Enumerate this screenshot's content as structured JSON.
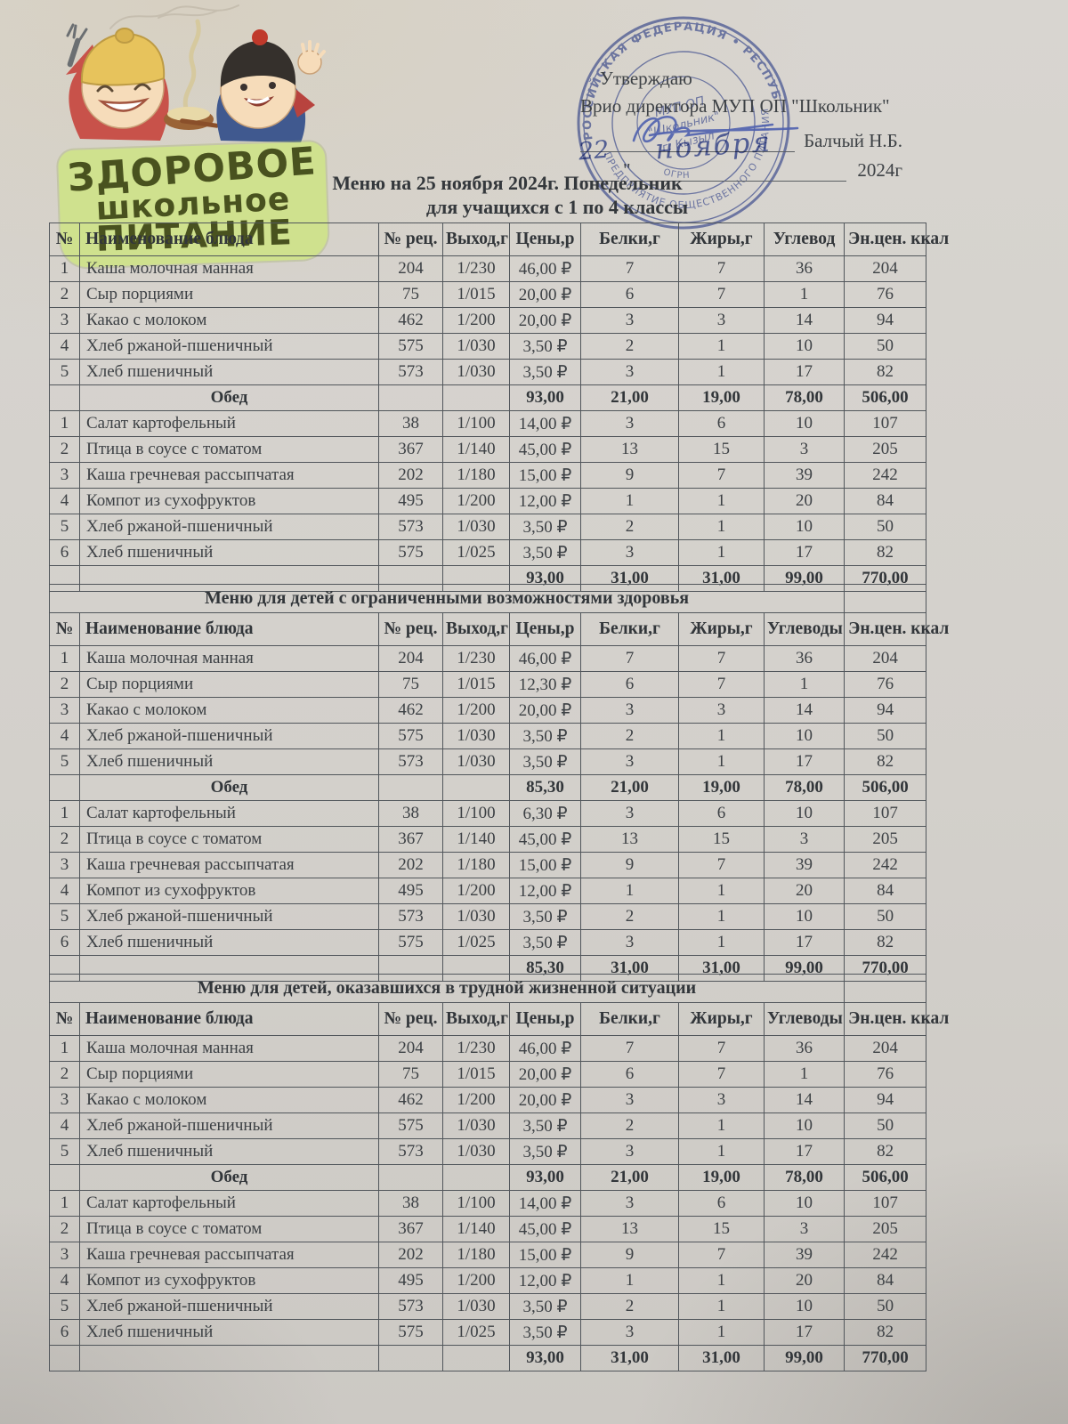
{
  "colors": {
    "handwriting_blue": "#4f60ae",
    "stamp_blue": "#6474bb",
    "logo_green_bg": "#cfe18e",
    "logo_text_dark": "#49521f"
  },
  "logo": {
    "line1": "ЗДОРОВОЕ",
    "line2": "школьное",
    "line3": "ПИТАНИЕ"
  },
  "approval": {
    "approve": "Утверждаю",
    "position_line": "Врио директора МУП ОП \"Школьник\"",
    "signer_name": "Балчый Н.Б.",
    "quote": "\"",
    "handwritten_day": "22",
    "handwritten_month": "ноября",
    "year": "2024г"
  },
  "stamp": {
    "ring_top": "РОССИЙСКАЯ ФЕДЕРАЦИЯ • РЕСПУБЛИКА ТЫВА",
    "ring_bottom": "ПРЕДПРИЯТИЕ ОБЩЕСТВЕННОГО ПИТАНИЯ",
    "ogrn": "ОГРН",
    "center1": "МУП ОП",
    "center2": "\"Школьник\"",
    "center3": "г. Кызыл"
  },
  "title": {
    "line1": "Меню на 25 ноября 2024г. Понедельник",
    "line2": "для учащихся с 1 по 4 классы"
  },
  "tables": [
    {
      "section_title": null,
      "headers": [
        "№",
        "Наименование блюда",
        "№ рец.",
        "Выход,г",
        "Цены,р",
        "Белки,г",
        "Жиры,г",
        "Углевод",
        "Эн.цен. ккал"
      ],
      "rows": [
        {
          "type": "item",
          "n": "1",
          "name": "Каша молочная  манная",
          "rec": "204",
          "out": "1/230",
          "price": "46,00 ₽",
          "protein": "7",
          "fat": "7",
          "carb": "36",
          "kcal": "204"
        },
        {
          "type": "item",
          "n": "2",
          "name": "Сыр порциями",
          "rec": "75",
          "out": "1/015",
          "price": "20,00 ₽",
          "protein": "6",
          "fat": "7",
          "carb": "1",
          "kcal": "76"
        },
        {
          "type": "item",
          "n": "3",
          "name": "Какао с молоком",
          "rec": "462",
          "out": "1/200",
          "price": "20,00 ₽",
          "protein": "3",
          "fat": "3",
          "carb": "14",
          "kcal": "94"
        },
        {
          "type": "item",
          "n": "4",
          "name": "Хлеб ржаной-пшеничный",
          "rec": "575",
          "out": "1/030",
          "price": "3,50 ₽",
          "protein": "2",
          "fat": "1",
          "carb": "10",
          "kcal": "50"
        },
        {
          "type": "item",
          "n": "5",
          "name": "Хлеб пшеничный",
          "rec": "573",
          "out": "1/030",
          "price": "3,50 ₽",
          "protein": "3",
          "fat": "1",
          "carb": "17",
          "kcal": "82"
        },
        {
          "type": "subtotal",
          "name": "Обед",
          "price": "93,00",
          "protein": "21,00",
          "fat": "19,00",
          "carb": "78,00",
          "kcal": "506,00"
        },
        {
          "type": "item",
          "n": "1",
          "name": "Салат картофельный",
          "rec": "38",
          "out": "1/100",
          "price": "14,00 ₽",
          "protein": "3",
          "fat": "6",
          "carb": "10",
          "kcal": "107"
        },
        {
          "type": "item",
          "n": "2",
          "name": "Птица в соусе с томатом",
          "rec": "367",
          "out": "1/140",
          "price": "45,00 ₽",
          "protein": "13",
          "fat": "15",
          "carb": "3",
          "kcal": "205"
        },
        {
          "type": "item",
          "n": "3",
          "name": "Каша гречневая рассыпчатая",
          "rec": "202",
          "out": "1/180",
          "price": "15,00 ₽",
          "protein": "9",
          "fat": "7",
          "carb": "39",
          "kcal": "242"
        },
        {
          "type": "item",
          "n": "4",
          "name": "Компот из сухофруктов",
          "rec": "495",
          "out": "1/200",
          "price": "12,00 ₽",
          "protein": "1",
          "fat": "1",
          "carb": "20",
          "kcal": "84"
        },
        {
          "type": "item",
          "n": "5",
          "name": "Хлеб ржаной-пшеничный",
          "rec": "573",
          "out": "1/030",
          "price": "3,50 ₽",
          "protein": "2",
          "fat": "1",
          "carb": "10",
          "kcal": "50"
        },
        {
          "type": "item",
          "n": "6",
          "name": "Хлеб пшеничный",
          "rec": "575",
          "out": "1/025",
          "price": "3,50 ₽",
          "protein": "3",
          "fat": "1",
          "carb": "17",
          "kcal": "82"
        },
        {
          "type": "total",
          "price": "93,00",
          "protein": "31,00",
          "fat": "31,00",
          "carb": "99,00",
          "kcal": "770,00"
        }
      ]
    },
    {
      "section_title": "Меню для детей с ограниченными возможностями здоровья",
      "headers": [
        "№",
        "Наименование блюда",
        "№ рец.",
        "Выход,г",
        "Цены,р",
        "Белки,г",
        "Жиры,г",
        "Углеводы",
        "Эн.цен. ккал"
      ],
      "rows": [
        {
          "type": "item",
          "n": "1",
          "name": "Каша молочная  манная",
          "rec": "204",
          "out": "1/230",
          "price": "46,00 ₽",
          "protein": "7",
          "fat": "7",
          "carb": "36",
          "kcal": "204"
        },
        {
          "type": "item",
          "n": "2",
          "name": "Сыр порциями",
          "rec": "75",
          "out": "1/015",
          "price": "12,30 ₽",
          "protein": "6",
          "fat": "7",
          "carb": "1",
          "kcal": "76"
        },
        {
          "type": "item",
          "n": "3",
          "name": "Какао с молоком",
          "rec": "462",
          "out": "1/200",
          "price": "20,00 ₽",
          "protein": "3",
          "fat": "3",
          "carb": "14",
          "kcal": "94"
        },
        {
          "type": "item",
          "n": "4",
          "name": "Хлеб ржаной-пшеничный",
          "rec": "575",
          "out": "1/030",
          "price": "3,50 ₽",
          "protein": "2",
          "fat": "1",
          "carb": "10",
          "kcal": "50"
        },
        {
          "type": "item",
          "n": "5",
          "name": "Хлеб пшеничный",
          "rec": "573",
          "out": "1/030",
          "price": "3,50 ₽",
          "protein": "3",
          "fat": "1",
          "carb": "17",
          "kcal": "82"
        },
        {
          "type": "subtotal",
          "name": "Обед",
          "price": "85,30",
          "protein": "21,00",
          "fat": "19,00",
          "carb": "78,00",
          "kcal": "506,00"
        },
        {
          "type": "item",
          "n": "1",
          "name": "Салат картофельный",
          "rec": "38",
          "out": "1/100",
          "price": "6,30 ₽",
          "protein": "3",
          "fat": "6",
          "carb": "10",
          "kcal": "107"
        },
        {
          "type": "item",
          "n": "2",
          "name": "Птица в соусе с томатом",
          "rec": "367",
          "out": "1/140",
          "price": "45,00 ₽",
          "protein": "13",
          "fat": "15",
          "carb": "3",
          "kcal": "205"
        },
        {
          "type": "item",
          "n": "3",
          "name": "Каша гречневая рассыпчатая",
          "rec": "202",
          "out": "1/180",
          "price": "15,00 ₽",
          "protein": "9",
          "fat": "7",
          "carb": "39",
          "kcal": "242"
        },
        {
          "type": "item",
          "n": "4",
          "name": "Компот из сухофруктов",
          "rec": "495",
          "out": "1/200",
          "price": "12,00 ₽",
          "protein": "1",
          "fat": "1",
          "carb": "20",
          "kcal": "84"
        },
        {
          "type": "item",
          "n": "5",
          "name": "Хлеб ржаной-пшеничный",
          "rec": "573",
          "out": "1/030",
          "price": "3,50 ₽",
          "protein": "2",
          "fat": "1",
          "carb": "10",
          "kcal": "50"
        },
        {
          "type": "item",
          "n": "6",
          "name": "Хлеб пшеничный",
          "rec": "575",
          "out": "1/025",
          "price": "3,50 ₽",
          "protein": "3",
          "fat": "1",
          "carb": "17",
          "kcal": "82"
        },
        {
          "type": "total",
          "price": "85,30",
          "protein": "31,00",
          "fat": "31,00",
          "carb": "99,00",
          "kcal": "770,00"
        }
      ]
    },
    {
      "section_title": "Меню для детей, оказавшихся в трудной жизненной ситуации",
      "headers": [
        "№",
        "Наименование блюда",
        "№ рец.",
        "Выход,г",
        "Цены,р",
        "Белки,г",
        "Жиры,г",
        "Углеводы",
        "Эн.цен. ккал"
      ],
      "rows": [
        {
          "type": "item",
          "n": "1",
          "name": "Каша молочная  манная",
          "rec": "204",
          "out": "1/230",
          "price": "46,00 ₽",
          "protein": "7",
          "fat": "7",
          "carb": "36",
          "kcal": "204"
        },
        {
          "type": "item",
          "n": "2",
          "name": "Сыр порциями",
          "rec": "75",
          "out": "1/015",
          "price": "20,00 ₽",
          "protein": "6",
          "fat": "7",
          "carb": "1",
          "kcal": "76"
        },
        {
          "type": "item",
          "n": "3",
          "name": "Какао с молоком",
          "rec": "462",
          "out": "1/200",
          "price": "20,00 ₽",
          "protein": "3",
          "fat": "3",
          "carb": "14",
          "kcal": "94"
        },
        {
          "type": "item",
          "n": "4",
          "name": "Хлеб ржаной-пшеничный",
          "rec": "575",
          "out": "1/030",
          "price": "3,50 ₽",
          "protein": "2",
          "fat": "1",
          "carb": "10",
          "kcal": "50"
        },
        {
          "type": "item",
          "n": "5",
          "name": "Хлеб пшеничный",
          "rec": "573",
          "out": "1/030",
          "price": "3,50 ₽",
          "protein": "3",
          "fat": "1",
          "carb": "17",
          "kcal": "82"
        },
        {
          "type": "subtotal",
          "name": "Обед",
          "price": "93,00",
          "protein": "21,00",
          "fat": "19,00",
          "carb": "78,00",
          "kcal": "506,00"
        },
        {
          "type": "item",
          "n": "1",
          "name": "Салат картофельный",
          "rec": "38",
          "out": "1/100",
          "price": "14,00 ₽",
          "protein": "3",
          "fat": "6",
          "carb": "10",
          "kcal": "107"
        },
        {
          "type": "item",
          "n": "2",
          "name": "Птица в соусе с томатом",
          "rec": "367",
          "out": "1/140",
          "price": "45,00 ₽",
          "protein": "13",
          "fat": "15",
          "carb": "3",
          "kcal": "205"
        },
        {
          "type": "item",
          "n": "3",
          "name": "Каша гречневая рассыпчатая",
          "rec": "202",
          "out": "1/180",
          "price": "15,00 ₽",
          "protein": "9",
          "fat": "7",
          "carb": "39",
          "kcal": "242"
        },
        {
          "type": "item",
          "n": "4",
          "name": "Компот из сухофруктов",
          "rec": "495",
          "out": "1/200",
          "price": "12,00 ₽",
          "protein": "1",
          "fat": "1",
          "carb": "20",
          "kcal": "84"
        },
        {
          "type": "item",
          "n": "5",
          "name": "Хлеб ржаной-пшеничный",
          "rec": "573",
          "out": "1/030",
          "price": "3,50 ₽",
          "protein": "2",
          "fat": "1",
          "carb": "10",
          "kcal": "50"
        },
        {
          "type": "item",
          "n": "6",
          "name": "Хлеб пшеничный",
          "rec": "575",
          "out": "1/025",
          "price": "3,50 ₽",
          "protein": "3",
          "fat": "1",
          "carb": "17",
          "kcal": "82"
        },
        {
          "type": "total",
          "price": "93,00",
          "protein": "31,00",
          "fat": "31,00",
          "carb": "99,00",
          "kcal": "770,00"
        }
      ]
    }
  ]
}
